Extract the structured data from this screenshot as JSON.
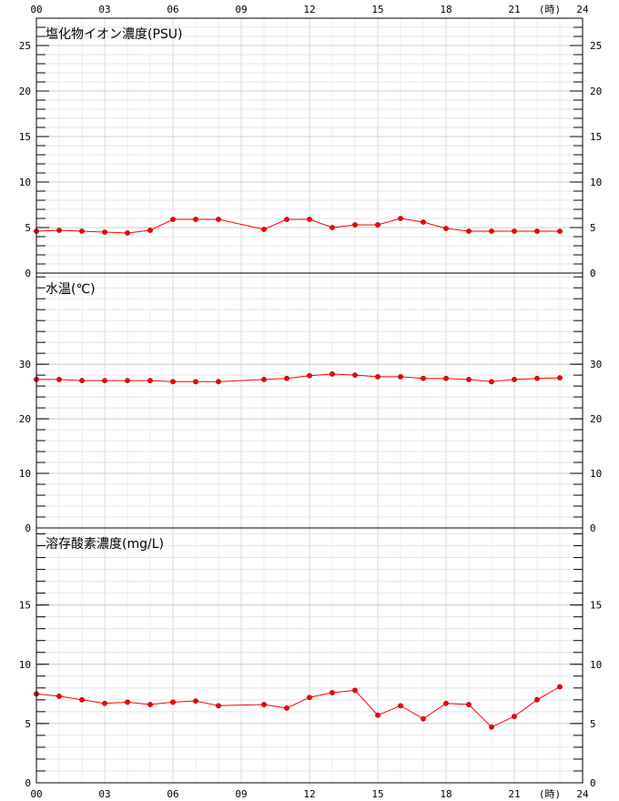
{
  "chart_data": {
    "type": "line",
    "x_unit_label": "(時)",
    "x_ticks": [
      "00",
      "03",
      "06",
      "09",
      "12",
      "15",
      "18",
      "21",
      "24"
    ],
    "colors": {
      "series": "#ff0000",
      "marker_fill": "#ff0000",
      "grid": "#d8d8d8"
    },
    "panels": [
      {
        "title": "塩化物イオン濃度(PSU)",
        "ylim": [
          0,
          28
        ],
        "y_ticks": [
          "0",
          "5",
          "10",
          "15",
          "20",
          "25"
        ],
        "x": [
          0,
          1,
          2,
          3,
          4,
          5,
          6,
          7,
          8,
          10,
          11,
          12,
          13,
          14,
          15,
          16,
          17,
          18,
          19,
          20,
          21,
          22,
          23
        ],
        "values": [
          4.6,
          4.7,
          4.6,
          4.5,
          4.4,
          4.7,
          5.9,
          5.9,
          5.9,
          4.8,
          5.9,
          5.9,
          5.0,
          5.3,
          5.3,
          6.0,
          5.6,
          4.9,
          4.6,
          4.6,
          4.6,
          4.6,
          4.6
        ]
      },
      {
        "title": "水温(℃)",
        "ylim": [
          0,
          46.7
        ],
        "y_ticks": [
          "0",
          "10",
          "20",
          "30"
        ],
        "x": [
          0,
          1,
          2,
          3,
          4,
          5,
          6,
          7,
          8,
          10,
          11,
          12,
          13,
          14,
          15,
          16,
          17,
          18,
          19,
          20,
          21,
          22,
          23
        ],
        "values": [
          27.2,
          27.2,
          27.0,
          27.0,
          27.0,
          27.0,
          26.8,
          26.8,
          26.8,
          27.2,
          27.4,
          27.9,
          28.2,
          28.0,
          27.7,
          27.7,
          27.4,
          27.4,
          27.2,
          26.8,
          27.2,
          27.4,
          27.5
        ]
      },
      {
        "title": "溶存酸素濃度(mg/L)",
        "ylim": [
          0,
          21.5
        ],
        "y_ticks": [
          "0",
          "5",
          "10",
          "15"
        ],
        "x": [
          0,
          1,
          2,
          3,
          4,
          5,
          6,
          7,
          8,
          10,
          11,
          12,
          13,
          14,
          15,
          16,
          17,
          18,
          19,
          20,
          21,
          22,
          23
        ],
        "values": [
          7.5,
          7.3,
          7.0,
          6.7,
          6.8,
          6.6,
          6.8,
          6.9,
          6.5,
          6.6,
          6.3,
          7.2,
          7.6,
          7.8,
          5.7,
          6.5,
          5.4,
          6.7,
          6.6,
          4.7,
          5.6,
          7.0,
          8.1
        ]
      }
    ],
    "grid": true
  }
}
